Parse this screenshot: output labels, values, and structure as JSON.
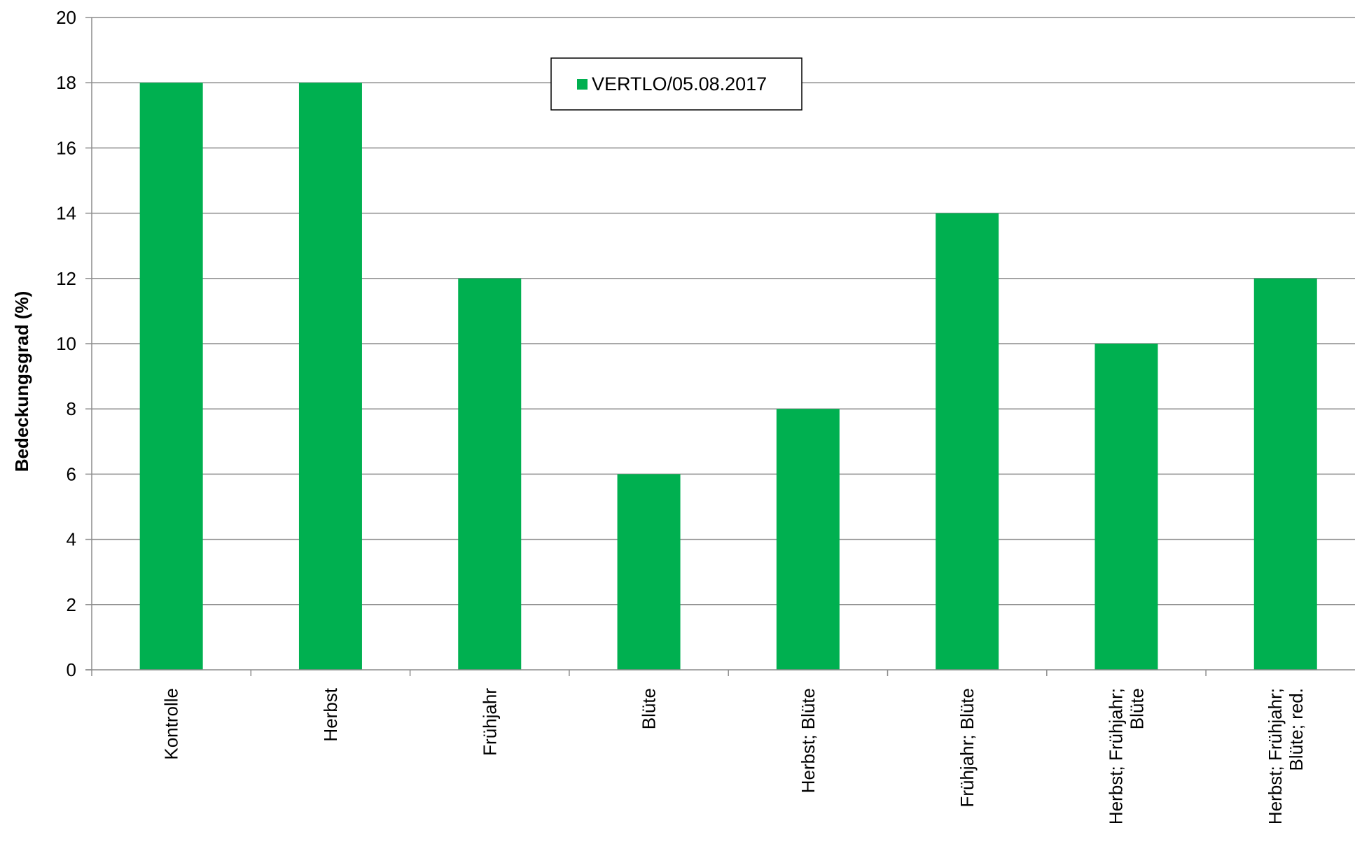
{
  "chart_data": {
    "type": "bar",
    "categories": [
      [
        "Kontrolle"
      ],
      [
        "Herbst"
      ],
      [
        "Frühjahr"
      ],
      [
        "Blüte"
      ],
      [
        "Herbst; Blüte"
      ],
      [
        "Frühjahr; Blüte"
      ],
      [
        "Herbst; Frühjahr;",
        "Blüte"
      ],
      [
        "Herbst; Frühjahr;",
        "Blüte; red."
      ]
    ],
    "series": [
      {
        "name": "VERTLO/05.08.2017",
        "values": [
          18,
          18,
          12,
          6,
          8,
          14,
          10,
          12
        ],
        "color": "#00b050"
      }
    ],
    "ylabel": "Bedeckungsgrad (%)",
    "ylim": [
      0,
      20
    ],
    "yticks": [
      0,
      2,
      4,
      6,
      8,
      10,
      12,
      14,
      16,
      18,
      20
    ],
    "grid": true,
    "legend_position": "top-center"
  }
}
